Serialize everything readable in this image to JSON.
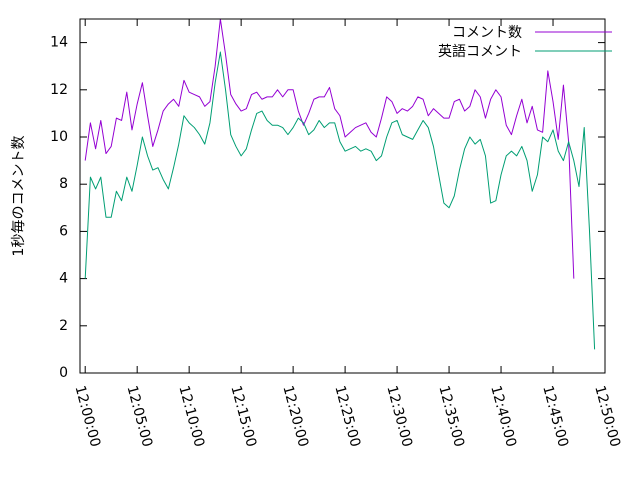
{
  "chart_data": {
    "type": "line",
    "title": "",
    "xlabel": "",
    "ylabel": "1秒毎のコメント数",
    "x_ticks": [
      "12:00:00",
      "12:05:00",
      "12:10:00",
      "12:15:00",
      "12:20:00",
      "12:25:00",
      "12:30:00",
      "12:35:00",
      "12:40:00",
      "12:45:00",
      "12:50:00"
    ],
    "xlim": [
      "11:59:30",
      "12:50:00"
    ],
    "y_ticks": [
      0,
      2,
      4,
      6,
      8,
      10,
      12,
      14
    ],
    "ylim": [
      0,
      15
    ],
    "grid": false,
    "legend_position": "top-right",
    "series": [
      {
        "name": "コメント数",
        "color": "#9400d3",
        "points": [
          [
            "12:00:00",
            9.0
          ],
          [
            "12:00:30",
            10.6
          ],
          [
            "12:01:00",
            9.5
          ],
          [
            "12:01:30",
            10.7
          ],
          [
            "12:02:00",
            9.3
          ],
          [
            "12:02:30",
            9.6
          ],
          [
            "12:03:00",
            10.8
          ],
          [
            "12:03:30",
            10.7
          ],
          [
            "12:04:00",
            11.9
          ],
          [
            "12:04:30",
            10.3
          ],
          [
            "12:05:00",
            11.4
          ],
          [
            "12:05:30",
            12.3
          ],
          [
            "12:06:00",
            10.9
          ],
          [
            "12:06:30",
            9.6
          ],
          [
            "12:07:00",
            10.3
          ],
          [
            "12:07:30",
            11.1
          ],
          [
            "12:08:00",
            11.4
          ],
          [
            "12:08:30",
            11.6
          ],
          [
            "12:09:00",
            11.3
          ],
          [
            "12:09:30",
            12.4
          ],
          [
            "12:10:00",
            11.9
          ],
          [
            "12:10:30",
            11.8
          ],
          [
            "12:11:00",
            11.7
          ],
          [
            "12:11:30",
            11.3
          ],
          [
            "12:12:00",
            11.5
          ],
          [
            "12:12:30",
            13.0
          ],
          [
            "12:13:00",
            15.0
          ],
          [
            "12:13:30",
            13.5
          ],
          [
            "12:14:00",
            11.8
          ],
          [
            "12:14:30",
            11.4
          ],
          [
            "12:15:00",
            11.1
          ],
          [
            "12:15:30",
            11.2
          ],
          [
            "12:16:00",
            11.8
          ],
          [
            "12:16:30",
            11.9
          ],
          [
            "12:17:00",
            11.6
          ],
          [
            "12:17:30",
            11.7
          ],
          [
            "12:18:00",
            11.7
          ],
          [
            "12:18:30",
            12.0
          ],
          [
            "12:19:00",
            11.7
          ],
          [
            "12:19:30",
            12.0
          ],
          [
            "12:20:00",
            12.0
          ],
          [
            "12:20:30",
            11.1
          ],
          [
            "12:21:00",
            10.5
          ],
          [
            "12:21:30",
            11.0
          ],
          [
            "12:22:00",
            11.6
          ],
          [
            "12:22:30",
            11.7
          ],
          [
            "12:23:00",
            11.7
          ],
          [
            "12:23:30",
            12.1
          ],
          [
            "12:24:00",
            11.2
          ],
          [
            "12:24:30",
            10.9
          ],
          [
            "12:25:00",
            10.0
          ],
          [
            "12:25:30",
            10.2
          ],
          [
            "12:26:00",
            10.4
          ],
          [
            "12:26:30",
            10.5
          ],
          [
            "12:27:00",
            10.6
          ],
          [
            "12:27:30",
            10.2
          ],
          [
            "12:28:00",
            10.0
          ],
          [
            "12:28:30",
            10.8
          ],
          [
            "12:29:00",
            11.7
          ],
          [
            "12:29:30",
            11.5
          ],
          [
            "12:30:00",
            11.0
          ],
          [
            "12:30:30",
            11.2
          ],
          [
            "12:31:00",
            11.1
          ],
          [
            "12:31:30",
            11.3
          ],
          [
            "12:32:00",
            11.7
          ],
          [
            "12:32:30",
            11.6
          ],
          [
            "12:33:00",
            10.9
          ],
          [
            "12:33:30",
            11.2
          ],
          [
            "12:34:00",
            11.0
          ],
          [
            "12:34:30",
            10.8
          ],
          [
            "12:35:00",
            10.8
          ],
          [
            "12:35:30",
            11.5
          ],
          [
            "12:36:00",
            11.6
          ],
          [
            "12:36:30",
            11.1
          ],
          [
            "12:37:00",
            11.3
          ],
          [
            "12:37:30",
            12.0
          ],
          [
            "12:38:00",
            11.7
          ],
          [
            "12:38:30",
            10.8
          ],
          [
            "12:39:00",
            11.6
          ],
          [
            "12:39:30",
            12.0
          ],
          [
            "12:40:00",
            11.7
          ],
          [
            "12:40:30",
            10.5
          ],
          [
            "12:41:00",
            10.1
          ],
          [
            "12:41:30",
            10.9
          ],
          [
            "12:42:00",
            11.6
          ],
          [
            "12:42:30",
            10.6
          ],
          [
            "12:43:00",
            11.3
          ],
          [
            "12:43:30",
            10.3
          ],
          [
            "12:44:00",
            10.2
          ],
          [
            "12:44:30",
            12.8
          ],
          [
            "12:45:00",
            11.5
          ],
          [
            "12:45:30",
            9.9
          ],
          [
            "12:46:00",
            12.2
          ],
          [
            "12:46:30",
            9.8
          ],
          [
            "12:47:00",
            4.0
          ]
        ]
      },
      {
        "name": "英語コメント",
        "color": "#009e73",
        "points": [
          [
            "12:00:00",
            4.0
          ],
          [
            "12:00:30",
            8.3
          ],
          [
            "12:01:00",
            7.8
          ],
          [
            "12:01:30",
            8.3
          ],
          [
            "12:02:00",
            6.6
          ],
          [
            "12:02:30",
            6.6
          ],
          [
            "12:03:00",
            7.7
          ],
          [
            "12:03:30",
            7.3
          ],
          [
            "12:04:00",
            8.3
          ],
          [
            "12:04:30",
            7.7
          ],
          [
            "12:05:00",
            8.8
          ],
          [
            "12:05:30",
            10.0
          ],
          [
            "12:06:00",
            9.2
          ],
          [
            "12:06:30",
            8.6
          ],
          [
            "12:07:00",
            8.7
          ],
          [
            "12:07:30",
            8.2
          ],
          [
            "12:08:00",
            7.8
          ],
          [
            "12:08:30",
            8.7
          ],
          [
            "12:09:00",
            9.7
          ],
          [
            "12:09:30",
            10.9
          ],
          [
            "12:10:00",
            10.6
          ],
          [
            "12:10:30",
            10.4
          ],
          [
            "12:11:00",
            10.1
          ],
          [
            "12:11:30",
            9.7
          ],
          [
            "12:12:00",
            10.6
          ],
          [
            "12:12:30",
            12.3
          ],
          [
            "12:13:00",
            13.6
          ],
          [
            "12:13:30",
            12.0
          ],
          [
            "12:14:00",
            10.1
          ],
          [
            "12:14:30",
            9.6
          ],
          [
            "12:15:00",
            9.2
          ],
          [
            "12:15:30",
            9.5
          ],
          [
            "12:16:00",
            10.3
          ],
          [
            "12:16:30",
            11.0
          ],
          [
            "12:17:00",
            11.1
          ],
          [
            "12:17:30",
            10.7
          ],
          [
            "12:18:00",
            10.5
          ],
          [
            "12:18:30",
            10.5
          ],
          [
            "12:19:00",
            10.4
          ],
          [
            "12:19:30",
            10.1
          ],
          [
            "12:20:00",
            10.4
          ],
          [
            "12:20:30",
            10.8
          ],
          [
            "12:21:00",
            10.6
          ],
          [
            "12:21:30",
            10.1
          ],
          [
            "12:22:00",
            10.3
          ],
          [
            "12:22:30",
            10.7
          ],
          [
            "12:23:00",
            10.4
          ],
          [
            "12:23:30",
            10.6
          ],
          [
            "12:24:00",
            10.6
          ],
          [
            "12:24:30",
            9.8
          ],
          [
            "12:25:00",
            9.4
          ],
          [
            "12:25:30",
            9.5
          ],
          [
            "12:26:00",
            9.6
          ],
          [
            "12:26:30",
            9.4
          ],
          [
            "12:27:00",
            9.5
          ],
          [
            "12:27:30",
            9.4
          ],
          [
            "12:28:00",
            9.0
          ],
          [
            "12:28:30",
            9.2
          ],
          [
            "12:29:00",
            10.0
          ],
          [
            "12:29:30",
            10.6
          ],
          [
            "12:30:00",
            10.7
          ],
          [
            "12:30:30",
            10.1
          ],
          [
            "12:31:00",
            10.0
          ],
          [
            "12:31:30",
            9.9
          ],
          [
            "12:32:00",
            10.3
          ],
          [
            "12:32:30",
            10.7
          ],
          [
            "12:33:00",
            10.4
          ],
          [
            "12:33:30",
            9.6
          ],
          [
            "12:34:00",
            8.4
          ],
          [
            "12:34:30",
            7.2
          ],
          [
            "12:35:00",
            7.0
          ],
          [
            "12:35:30",
            7.5
          ],
          [
            "12:36:00",
            8.6
          ],
          [
            "12:36:30",
            9.5
          ],
          [
            "12:37:00",
            10.0
          ],
          [
            "12:37:30",
            9.7
          ],
          [
            "12:38:00",
            9.9
          ],
          [
            "12:38:30",
            9.2
          ],
          [
            "12:39:00",
            7.2
          ],
          [
            "12:39:30",
            7.3
          ],
          [
            "12:40:00",
            8.4
          ],
          [
            "12:40:30",
            9.2
          ],
          [
            "12:41:00",
            9.4
          ],
          [
            "12:41:30",
            9.2
          ],
          [
            "12:42:00",
            9.6
          ],
          [
            "12:42:30",
            9.0
          ],
          [
            "12:43:00",
            7.7
          ],
          [
            "12:43:30",
            8.4
          ],
          [
            "12:44:00",
            10.0
          ],
          [
            "12:44:30",
            9.8
          ],
          [
            "12:45:00",
            10.3
          ],
          [
            "12:45:30",
            9.4
          ],
          [
            "12:46:00",
            9.0
          ],
          [
            "12:46:30",
            9.8
          ],
          [
            "12:47:00",
            9.0
          ],
          [
            "12:47:30",
            7.9
          ],
          [
            "12:48:00",
            10.4
          ],
          [
            "12:48:30",
            6.1
          ],
          [
            "12:49:00",
            1.0
          ]
        ]
      }
    ]
  }
}
